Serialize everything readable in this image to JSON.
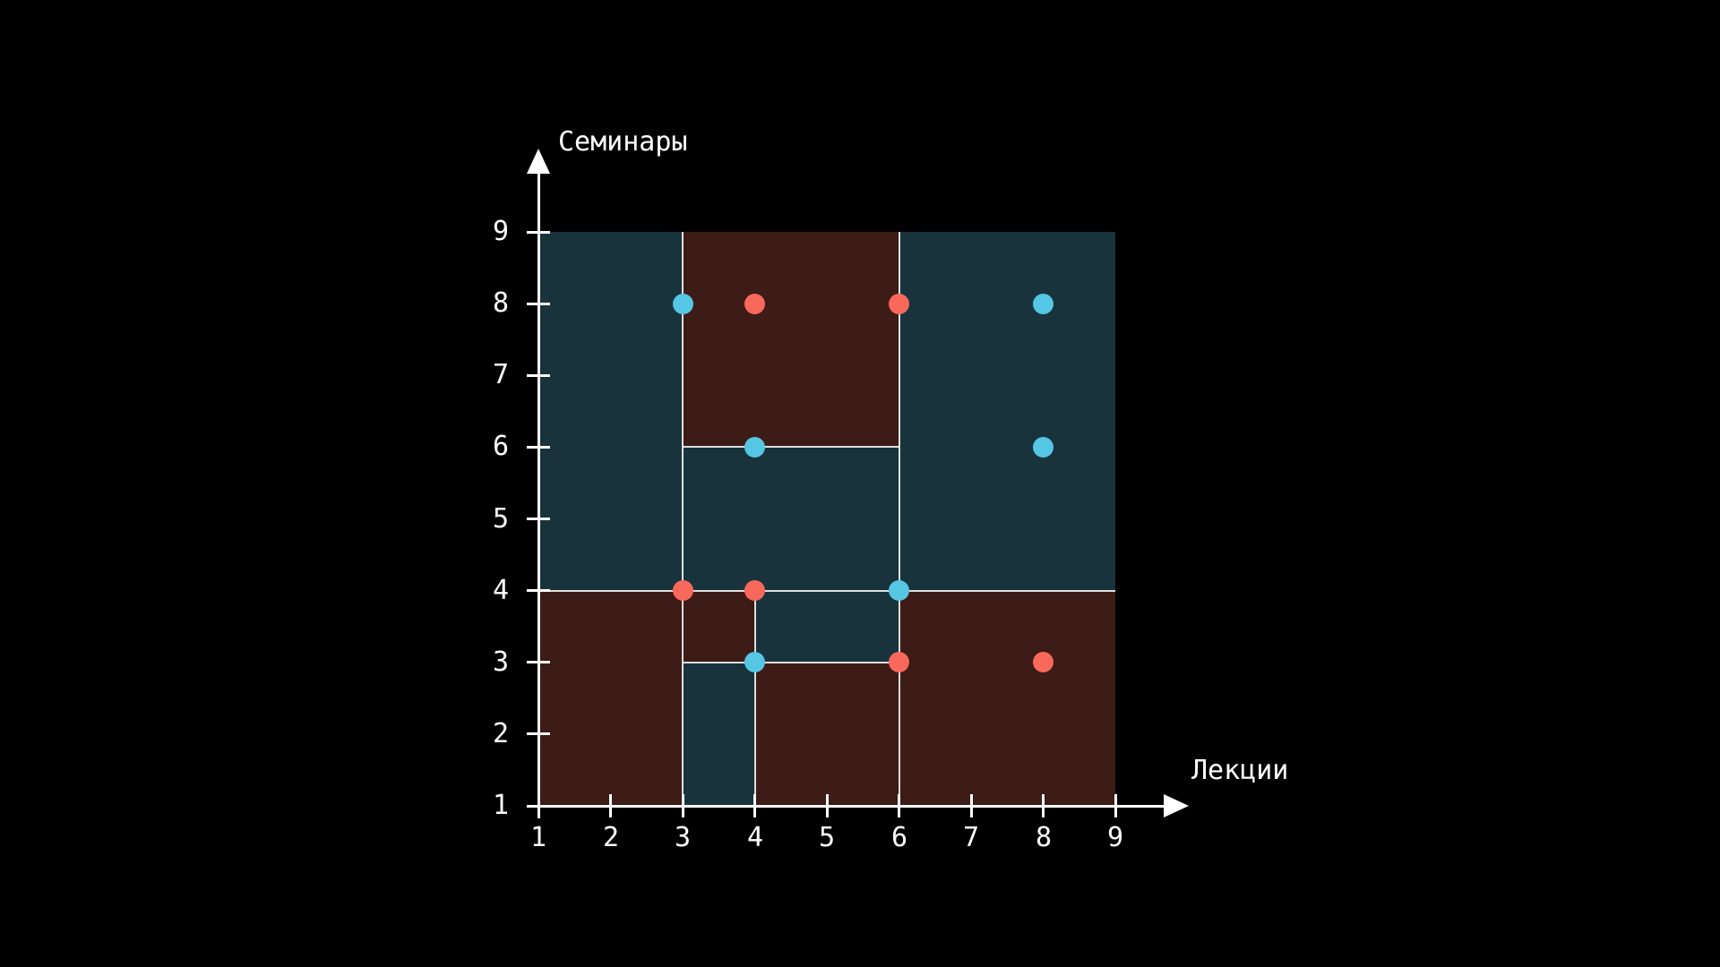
{
  "chart_data": {
    "type": "scatter",
    "title": "",
    "xlabel": "Лекции",
    "ylabel": "Семинары",
    "xlim": [
      1,
      9
    ],
    "ylim": [
      1,
      9
    ],
    "xticks": [
      1,
      2,
      3,
      4,
      5,
      6,
      7,
      8,
      9
    ],
    "yticks": [
      1,
      2,
      3,
      4,
      5,
      6,
      7,
      8,
      9
    ],
    "grid": false,
    "legend": "none",
    "background": "#000000",
    "axis_color": "#ffffff",
    "boundary_color": "rgba(255,255,255,0.85)",
    "region_colors": {
      "blue": "#18333C",
      "red": "#3D1B16"
    },
    "series": [
      {
        "name": "blue",
        "color": "#55C6E4",
        "points": [
          [
            3,
            8
          ],
          [
            8,
            8
          ],
          [
            4,
            6
          ],
          [
            8,
            6
          ],
          [
            6,
            4
          ],
          [
            4,
            3
          ]
        ]
      },
      {
        "name": "red",
        "color": "#F8685B",
        "points": [
          [
            4,
            8
          ],
          [
            6,
            8
          ],
          [
            3,
            4
          ],
          [
            4,
            4
          ],
          [
            6,
            3
          ],
          [
            8,
            3
          ]
        ]
      }
    ],
    "regions": [
      {
        "class": "blue",
        "x1": 1,
        "y1": 4,
        "x2": 3,
        "y2": 9
      },
      {
        "class": "red",
        "x1": 3,
        "y1": 6,
        "x2": 6,
        "y2": 9
      },
      {
        "class": "blue",
        "x1": 6,
        "y1": 4,
        "x2": 9,
        "y2": 9
      },
      {
        "class": "blue",
        "x1": 3,
        "y1": 4,
        "x2": 6,
        "y2": 6
      },
      {
        "class": "red",
        "x1": 1,
        "y1": 1,
        "x2": 3,
        "y2": 4
      },
      {
        "class": "red",
        "x1": 3,
        "y1": 3,
        "x2": 4,
        "y2": 4
      },
      {
        "class": "blue",
        "x1": 4,
        "y1": 3,
        "x2": 6,
        "y2": 4
      },
      {
        "class": "blue",
        "x1": 3,
        "y1": 1,
        "x2": 4,
        "y2": 3
      },
      {
        "class": "red",
        "x1": 4,
        "y1": 1,
        "x2": 6,
        "y2": 3
      },
      {
        "class": "red",
        "x1": 6,
        "y1": 1,
        "x2": 9,
        "y2": 4
      }
    ],
    "boundaries": [
      {
        "x1": 3,
        "y1": 1,
        "x2": 3,
        "y2": 9
      },
      {
        "x1": 6,
        "y1": 1,
        "x2": 6,
        "y2": 9
      },
      {
        "x1": 4,
        "y1": 1,
        "x2": 4,
        "y2": 4
      },
      {
        "x1": 1,
        "y1": 4,
        "x2": 9,
        "y2": 4
      },
      {
        "x1": 3,
        "y1": 6,
        "x2": 6,
        "y2": 6
      },
      {
        "x1": 3,
        "y1": 3,
        "x2": 6,
        "y2": 3
      }
    ]
  }
}
